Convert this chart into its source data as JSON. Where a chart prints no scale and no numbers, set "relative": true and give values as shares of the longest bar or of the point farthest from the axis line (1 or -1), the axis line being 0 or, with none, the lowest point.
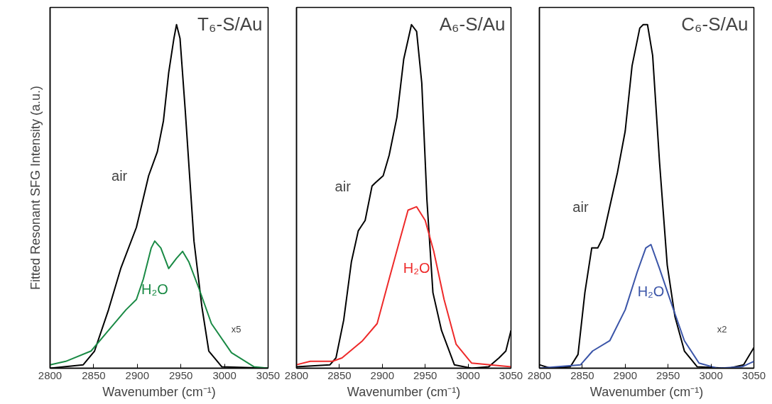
{
  "chart_data": [
    {
      "type": "line",
      "title": "T₆-S/Au",
      "xlabel": "Wavenumber (cm⁻¹)",
      "ylabel": "Fitted Resonant SFG Intensity (a.u.)",
      "relative": true,
      "xlim": [
        2800,
        3050
      ],
      "xticks": [
        2800,
        2850,
        2900,
        2950,
        3000,
        3050
      ],
      "tick_labels": "x",
      "grid": false,
      "annotations": [
        "x5"
      ],
      "series": [
        {
          "name": "air",
          "color": "#000000",
          "x": [
            2800,
            2838,
            2851,
            2867,
            2881,
            2899,
            2913,
            2923,
            2930,
            2936,
            2942,
            2945,
            2949,
            2955,
            2965,
            2974,
            2982,
            2997,
            3050
          ],
          "values": [
            0,
            0.01,
            0.05,
            0.17,
            0.29,
            0.41,
            0.56,
            0.63,
            0.72,
            0.86,
            0.96,
            1.0,
            0.96,
            0.75,
            0.37,
            0.18,
            0.05,
            0.004,
            0
          ]
        },
        {
          "name": "H₂O",
          "color": "#1a8a45",
          "x": [
            2800,
            2818,
            2847,
            2867,
            2887,
            2899,
            2907,
            2916,
            2920,
            2927,
            2936,
            2945,
            2952,
            2959,
            2971,
            2985,
            3008,
            3034,
            3050
          ],
          "values": [
            0.01,
            0.02,
            0.05,
            0.11,
            0.17,
            0.2,
            0.26,
            0.35,
            0.37,
            0.35,
            0.29,
            0.32,
            0.34,
            0.31,
            0.23,
            0.13,
            0.045,
            0.004,
            0
          ]
        }
      ]
    },
    {
      "type": "line",
      "title": "A₆-S/Au",
      "xlabel": "Wavenumber (cm⁻¹)",
      "relative": true,
      "xlim": [
        2800,
        3050
      ],
      "xticks": [
        2800,
        2850,
        2900,
        2950,
        3000,
        3050
      ],
      "tick_labels": "x",
      "grid": false,
      "series": [
        {
          "name": "air",
          "color": "#000000",
          "x": [
            2800,
            2839,
            2846,
            2855,
            2864,
            2872,
            2880,
            2888,
            2892,
            2901,
            2908,
            2917,
            2925,
            2934,
            2940,
            2946,
            2952,
            2959,
            2969,
            2984,
            3004,
            3024,
            3036,
            3044,
            3050
          ],
          "values": [
            0.004,
            0.01,
            0.03,
            0.14,
            0.31,
            0.4,
            0.43,
            0.53,
            0.54,
            0.56,
            0.62,
            0.73,
            0.9,
            1.0,
            0.98,
            0.83,
            0.49,
            0.22,
            0.11,
            0.01,
            0,
            0.004,
            0.03,
            0.05,
            0.11
          ]
        },
        {
          "name": "H₂O",
          "color": "#ee2a2a",
          "x": [
            2800,
            2816,
            2842,
            2853,
            2877,
            2894,
            2908,
            2920,
            2930,
            2940,
            2950,
            2960,
            2972,
            2986,
            3004,
            3050
          ],
          "values": [
            0.01,
            0.02,
            0.02,
            0.03,
            0.08,
            0.13,
            0.26,
            0.37,
            0.46,
            0.47,
            0.43,
            0.34,
            0.2,
            0.07,
            0.015,
            0.004
          ]
        }
      ]
    },
    {
      "type": "line",
      "title": "C₆-S/Au",
      "xlabel": "Wavenumber (cm⁻¹)",
      "relative": true,
      "xlim": [
        2800,
        3050
      ],
      "xticks": [
        2800,
        2850,
        2900,
        2950,
        3000,
        3050
      ],
      "tick_labels": "x",
      "grid": false,
      "annotations": [
        "x2"
      ],
      "series": [
        {
          "name": "air",
          "color": "#000000",
          "x": [
            2800,
            2813,
            2836,
            2845,
            2853,
            2861,
            2868,
            2874,
            2882,
            2891,
            2900,
            2908,
            2917,
            2921,
            2926,
            2932,
            2940,
            2949,
            2958,
            2969,
            2984,
            3021,
            3038,
            3050
          ],
          "values": [
            0.01,
            0,
            0.004,
            0.04,
            0.22,
            0.35,
            0.35,
            0.38,
            0.47,
            0.57,
            0.69,
            0.88,
            0.99,
            1.0,
            1.0,
            0.91,
            0.6,
            0.3,
            0.15,
            0.05,
            0.004,
            0,
            0.01,
            0.06
          ]
        },
        {
          "name": "H₂O",
          "color": "#3b55a8",
          "x": [
            2800,
            2848,
            2862,
            2882,
            2900,
            2914,
            2924,
            2930,
            2940,
            2955,
            2969,
            2986,
            3007,
            3036,
            3050
          ],
          "values": [
            0,
            0.01,
            0.05,
            0.08,
            0.17,
            0.28,
            0.35,
            0.36,
            0.29,
            0.18,
            0.08,
            0.015,
            0,
            0.004,
            0.02
          ]
        }
      ]
    }
  ]
}
